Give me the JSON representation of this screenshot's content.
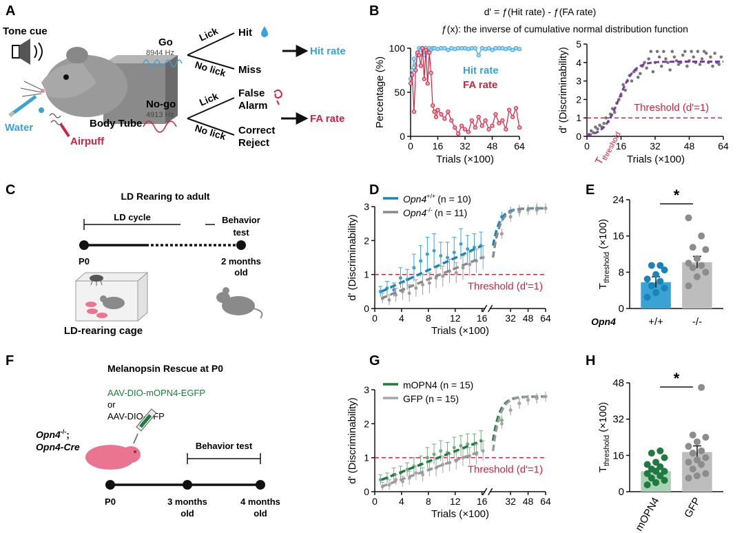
{
  "panels": {
    "A": {
      "letter": "A",
      "tone_cue": "Tone cue",
      "water": "Water",
      "airpuff": "Airpuff",
      "body_tube": "Body Tube",
      "go": "Go",
      "go_freq": "8944 Hz",
      "nogo": "No-go",
      "nogo_freq": "4913 Hz",
      "lick": "Lick",
      "no_lick": "No lick",
      "hit": "Hit",
      "miss": "Miss",
      "false_alarm_1": "False",
      "false_alarm_2": "Alarm",
      "correct_reject_1": "Correct",
      "correct_reject_2": "Reject",
      "hit_rate": "Hit rate",
      "fa_rate": "FA rate"
    },
    "B": {
      "letter": "B",
      "formula": "d' = ƒ(Hit rate) - ƒ(FA rate)",
      "formula_note": "ƒ(x): the inverse of cumulative normal distribution function",
      "threshold_label": "Threshold (d'=1)",
      "t_threshold_main": "T",
      "t_threshold_sub": "threshold"
    },
    "C": {
      "letter": "C",
      "title": "LD Rearing to adult",
      "ld_cycle": "LD cycle",
      "behavior_1": "Behavior",
      "behavior_2": "test",
      "p0": "P0",
      "two_months_1": "2 months",
      "two_months_2": "old",
      "cage": "LD-rearing cage"
    },
    "D": {
      "letter": "D",
      "legend1_gene": "Opn4",
      "legend1_sup": "+/+",
      "legend1_n": "(n = 10)",
      "legend2_gene": "Opn4",
      "legend2_sup": "-/-",
      "legend2_n": "(n = 11)",
      "threshold_label": "Threshold (d'=1)"
    },
    "E": {
      "letter": "E",
      "star": "*",
      "gene_label": "Opn4"
    },
    "F": {
      "letter": "F",
      "title": "Melanopsin Rescue at P0",
      "virus1": "AAV-DIO-mOPN4-EGFP",
      "or": "or",
      "virus2": "AAV-DIO-GFP",
      "mouse_gene": "Opn4",
      "mouse_sup": "-/-",
      "mouse_semicolon": ";",
      "mouse_cre": "Opn4-Cre",
      "behavior": "Behavior test",
      "p0": "P0",
      "three_months_1": "3 months",
      "three_months_2": "old",
      "four_months_1": "4 months",
      "four_months_2": "old"
    },
    "G": {
      "letter": "G",
      "legend1": "mOPN4  (n = 15)",
      "legend2": "GFP  (n = 15)",
      "threshold_label": "Threshold (d'=1)"
    },
    "H": {
      "letter": "H",
      "star": "*"
    }
  },
  "colors": {
    "blue": "#3aa3d6",
    "dark_blue": "#1a84b8",
    "red": "#d0233f",
    "purple": "#7b3aa0",
    "gray": "#8c8c8c",
    "light_gray": "#bdbdbd",
    "green": "#1e7a3e",
    "light_green": "#a9d2b4",
    "pink": "#ea7590"
  },
  "chart_data": [
    {
      "id": "B-left",
      "type": "line",
      "xlabel": "Trials (×100)",
      "ylabel": "Percentage (%)",
      "xlim": [
        0,
        64
      ],
      "ylim": [
        0,
        100
      ],
      "xticks": [
        0,
        16,
        32,
        48,
        64
      ],
      "yticks": [
        0,
        50,
        100
      ],
      "series": [
        {
          "name": "Hit rate",
          "color": "#3aa3d6",
          "x": [
            0,
            1,
            2,
            3,
            4,
            5,
            6,
            7,
            8,
            9,
            10,
            11,
            12,
            13,
            14,
            16,
            18,
            20,
            22,
            24,
            26,
            28,
            30,
            32,
            34,
            36,
            38,
            40,
            42,
            44,
            46,
            48,
            50,
            52,
            54,
            56,
            58,
            60,
            62,
            64
          ],
          "y": [
            65,
            75,
            88,
            80,
            92,
            100,
            98,
            100,
            92,
            100,
            95,
            100,
            98,
            100,
            100,
            99,
            100,
            100,
            98,
            100,
            99,
            100,
            100,
            100,
            99,
            100,
            100,
            92,
            100,
            99,
            100,
            98,
            100,
            100,
            100,
            99,
            100,
            98,
            100,
            99
          ]
        },
        {
          "name": "FA rate",
          "color": "#d0233f",
          "x": [
            0,
            1,
            2,
            3,
            4,
            5,
            6,
            7,
            8,
            9,
            10,
            11,
            12,
            13,
            14,
            15,
            16,
            18,
            20,
            22,
            24,
            26,
            28,
            30,
            32,
            34,
            36,
            38,
            40,
            42,
            44,
            46,
            48,
            50,
            52,
            54,
            56,
            58,
            60,
            62,
            64
          ],
          "y": [
            60,
            70,
            28,
            75,
            95,
            92,
            80,
            100,
            65,
            98,
            60,
            95,
            72,
            35,
            28,
            22,
            30,
            25,
            20,
            28,
            18,
            10,
            3,
            12,
            8,
            5,
            18,
            10,
            22,
            12,
            18,
            8,
            12,
            25,
            15,
            18,
            8,
            30,
            22,
            32,
            10
          ]
        }
      ]
    },
    {
      "id": "B-right",
      "type": "scatter",
      "xlabel": "Trials (×100)",
      "ylabel": "d' (Discriminability)",
      "xlim": [
        0,
        64
      ],
      "ylim": [
        0,
        5
      ],
      "xticks": [
        0,
        16,
        32,
        48,
        64
      ],
      "yticks": [
        0,
        1,
        2,
        3,
        4,
        5
      ],
      "threshold": 1,
      "fit_label": "sigmoid fit",
      "x": [
        1,
        2,
        3,
        4,
        5,
        6,
        7,
        8,
        9,
        10,
        11,
        12,
        13,
        14,
        15,
        16,
        17,
        18,
        19,
        20,
        21,
        22,
        23,
        24,
        25,
        26,
        27,
        28,
        29,
        30,
        31,
        32,
        33,
        34,
        35,
        36,
        37,
        38,
        39,
        40,
        41,
        42,
        43,
        44,
        45,
        46,
        47,
        48,
        49,
        50,
        51,
        52,
        53,
        54,
        55,
        56,
        57,
        58,
        59,
        60,
        61,
        62,
        63
      ],
      "y": [
        0.1,
        0.3,
        0.2,
        0.5,
        0.4,
        0.6,
        0.5,
        0.7,
        1.0,
        0.8,
        1.2,
        1.5,
        1.3,
        1.8,
        2.0,
        2.2,
        2.8,
        2.5,
        3.0,
        3.3,
        3.0,
        3.5,
        3.6,
        3.2,
        3.4,
        3.8,
        4.0,
        3.7,
        4.2,
        4.6,
        3.5,
        4.0,
        4.6,
        4.3,
        3.8,
        4.6,
        4.2,
        4.0,
        3.6,
        4.6,
        4.3,
        4.1,
        3.9,
        4.0,
        4.4,
        4.6,
        3.8,
        4.1,
        4.6,
        4.3,
        4.0,
        4.6,
        3.9,
        4.2,
        4.6,
        4.5,
        4.0,
        4.3,
        3.8,
        4.5,
        4.0,
        3.9,
        4.3
      ]
    },
    {
      "id": "D",
      "type": "line",
      "xlabel": "Trials (×100)",
      "ylabel": "d' (Discriminability)",
      "ylim": [
        0,
        3
      ],
      "xticks": [
        "0",
        "4",
        "8",
        "12",
        "16",
        "32",
        "48",
        "64"
      ],
      "yticks": [
        0,
        1,
        2,
        3
      ],
      "threshold": 1,
      "series": [
        {
          "name": "Opn4+/+ (n = 10)",
          "color": "#3aa3d6",
          "fit_color": "#1a84b8",
          "x": [
            1,
            2,
            3,
            4,
            5,
            6,
            7,
            8,
            9,
            10,
            11,
            12,
            13,
            14,
            15,
            16
          ],
          "y": [
            0.5,
            0.6,
            0.55,
            0.9,
            0.85,
            1.2,
            1.4,
            1.6,
            1.7,
            1.55,
            1.5,
            1.65,
            1.9,
            1.75,
            1.8,
            1.85
          ],
          "err": [
            0.15,
            0.2,
            0.2,
            0.3,
            0.3,
            0.4,
            0.45,
            0.5,
            0.5,
            0.4,
            0.45,
            0.45,
            0.45,
            0.4,
            0.4,
            0.4
          ],
          "late_x": [
            24,
            32,
            40,
            48,
            56,
            64
          ],
          "late_y": [
            2.7,
            2.85,
            2.9,
            2.9,
            2.95,
            2.95
          ]
        },
        {
          "name": "Opn4-/- (n = 11)",
          "color": "#9e9e9e",
          "fit_color": "#8a8a8a",
          "x": [
            1,
            2,
            3,
            4,
            5,
            6,
            7,
            8,
            9,
            10,
            11,
            12,
            13,
            14,
            15,
            16
          ],
          "y": [
            0.3,
            0.25,
            0.4,
            0.5,
            0.45,
            0.6,
            0.7,
            0.75,
            0.9,
            0.95,
            1.1,
            1.05,
            1.2,
            1.3,
            1.4,
            1.5
          ],
          "err": [
            0.15,
            0.15,
            0.2,
            0.25,
            0.25,
            0.25,
            0.3,
            0.3,
            0.3,
            0.3,
            0.35,
            0.3,
            0.35,
            0.35,
            0.35,
            0.35
          ],
          "late_x": [
            24,
            32,
            40,
            48,
            56,
            64
          ],
          "late_y": [
            2.2,
            2.7,
            2.85,
            2.9,
            2.9,
            2.95
          ]
        }
      ]
    },
    {
      "id": "E",
      "type": "bar",
      "ylabel": "T threshold (×100)",
      "ylim": [
        0,
        24
      ],
      "yticks": [
        0,
        8,
        16,
        24
      ],
      "categories": [
        "+/+",
        "-/-"
      ],
      "values": [
        5.8,
        10.2
      ],
      "sem": [
        1.2,
        1.3
      ],
      "colors": [
        "#3aa3d6",
        "#bdbdbd"
      ],
      "point_colors": [
        "#1a84b8",
        "#8c8c8c"
      ],
      "points": [
        [
          2.5,
          3.5,
          4.5,
          5,
          6,
          6.5,
          7.5,
          8.5,
          9.5,
          9.5
        ],
        [
          5,
          7,
          8,
          9,
          9.5,
          10,
          11,
          13,
          13.5,
          16,
          20
        ]
      ],
      "significance": "*"
    },
    {
      "id": "G",
      "type": "line",
      "xlabel": "Trials (×100)",
      "ylabel": "d' (Discriminability)",
      "ylim": [
        0,
        3
      ],
      "xticks": [
        "0",
        "4",
        "8",
        "12",
        "16",
        "32",
        "48",
        "64"
      ],
      "yticks": [
        0,
        1,
        2,
        3
      ],
      "threshold": 1,
      "series": [
        {
          "name": "mOPN4 (n = 15)",
          "color": "#6fae7f",
          "fit_color": "#1e7a3e",
          "x": [
            1,
            2,
            3,
            4,
            5,
            6,
            7,
            8,
            9,
            10,
            11,
            12,
            13,
            14,
            15,
            16
          ],
          "y": [
            0.35,
            0.4,
            0.5,
            0.55,
            0.65,
            0.75,
            0.8,
            1.0,
            1.1,
            1.2,
            1.15,
            1.3,
            1.35,
            1.4,
            1.4,
            1.5
          ],
          "err": [
            0.15,
            0.15,
            0.2,
            0.2,
            0.2,
            0.25,
            0.25,
            0.3,
            0.3,
            0.3,
            0.3,
            0.3,
            0.3,
            0.3,
            0.3,
            0.3
          ],
          "late_x": [
            24,
            32,
            40,
            48,
            56,
            64
          ],
          "late_y": [
            2.1,
            2.4,
            2.6,
            2.7,
            2.75,
            2.8
          ]
        },
        {
          "name": "GFP (n = 15)",
          "color": "#a6a6a6",
          "fit_color": "#9a9a9a",
          "x": [
            1,
            2,
            3,
            4,
            5,
            6,
            7,
            8,
            9,
            10,
            11,
            12,
            13,
            14,
            15,
            16
          ],
          "y": [
            0.15,
            0.2,
            0.35,
            0.3,
            0.4,
            0.55,
            0.5,
            0.65,
            0.7,
            0.8,
            0.85,
            0.9,
            1.0,
            1.05,
            1.1,
            1.2
          ],
          "err": [
            0.12,
            0.15,
            0.15,
            0.15,
            0.2,
            0.2,
            0.2,
            0.2,
            0.25,
            0.25,
            0.25,
            0.25,
            0.25,
            0.25,
            0.3,
            0.3
          ],
          "late_x": [
            24,
            32,
            40,
            48,
            56,
            64
          ],
          "late_y": [
            2.0,
            2.4,
            2.6,
            2.7,
            2.75,
            2.8
          ]
        }
      ]
    },
    {
      "id": "H",
      "type": "bar",
      "ylabel": "T threshold (×100)",
      "ylim": [
        0,
        48
      ],
      "yticks": [
        0,
        16,
        32,
        48
      ],
      "categories": [
        "mOPN4",
        "GFP"
      ],
      "values": [
        9,
        17.5
      ],
      "sem": [
        1.3,
        2.7
      ],
      "colors": [
        "#a9d2b4",
        "#bdbdbd"
      ],
      "point_colors": [
        "#1e7a3e",
        "#8c8c8c"
      ],
      "points": [
        [
          3,
          4,
          5,
          6,
          7,
          8,
          9,
          9,
          10,
          11,
          12,
          13,
          15,
          17,
          18
        ],
        [
          6,
          7,
          8,
          10,
          12,
          13,
          14,
          15,
          17,
          18,
          20,
          22,
          24,
          25,
          46
        ]
      ],
      "significance": "*"
    }
  ]
}
